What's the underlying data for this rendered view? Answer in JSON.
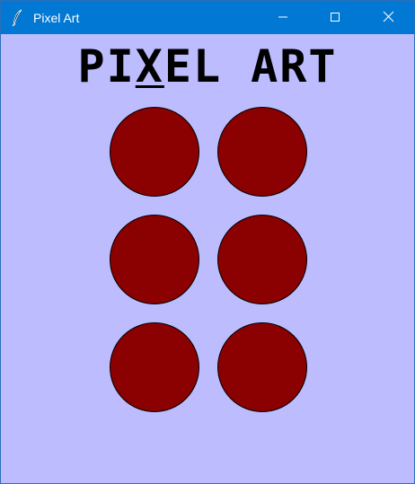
{
  "window": {
    "title": "Pixel Art",
    "titlebar_color": "#0078d4",
    "background_color": "#bcbcff"
  },
  "titlebar": {
    "app_icon": "feather-icon",
    "minimize_icon": "minimize-icon",
    "maximize_icon": "maximize-icon",
    "close_icon": "close-icon"
  },
  "heading": {
    "before": "PI",
    "highlighted": "X",
    "after": "EL ART"
  },
  "grid": {
    "fill_color": "#8b0000",
    "circles": [
      {
        "id": "circle-1"
      },
      {
        "id": "circle-2"
      },
      {
        "id": "circle-3"
      },
      {
        "id": "circle-4"
      },
      {
        "id": "circle-5"
      },
      {
        "id": "circle-6"
      }
    ]
  }
}
